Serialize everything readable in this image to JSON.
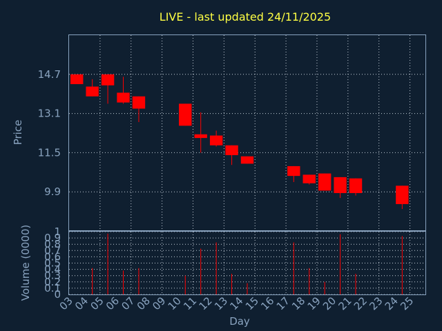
{
  "chart_data": [
    {
      "type": "candlestick",
      "title": "LIVE - last updated 24/11/2025",
      "ylabel": "Price",
      "ylim": [
        8.3,
        16.3
      ],
      "yticks": [
        9.9,
        11.5,
        13.1,
        14.7
      ],
      "grid": true,
      "up_color": "#ff0000",
      "days": [
        "03",
        "04",
        "05",
        "06",
        "07",
        "08",
        "09",
        "10",
        "11",
        "12",
        "13",
        "14",
        "15",
        "16",
        "17",
        "18",
        "19",
        "20",
        "21",
        "22",
        "23",
        "24",
        "25"
      ],
      "candles": [
        {
          "day": "03",
          "open": 14.7,
          "high": 14.7,
          "low": 14.3,
          "close": 14.3
        },
        {
          "day": "04",
          "open": 14.2,
          "high": 14.5,
          "low": 13.8,
          "close": 13.8
        },
        {
          "day": "05",
          "open": 14.7,
          "high": 14.7,
          "low": 13.5,
          "close": 14.25
        },
        {
          "day": "06",
          "open": 13.95,
          "high": 14.6,
          "low": 13.5,
          "close": 13.55
        },
        {
          "day": "07",
          "open": 13.8,
          "high": 13.8,
          "low": 12.75,
          "close": 13.3
        },
        {
          "day": "10",
          "open": 13.5,
          "high": 13.5,
          "low": 12.6,
          "close": 12.6
        },
        {
          "day": "11",
          "open": 12.25,
          "high": 13.15,
          "low": 11.5,
          "close": 12.1
        },
        {
          "day": "12",
          "open": 12.2,
          "high": 12.4,
          "low": 11.75,
          "close": 11.8
        },
        {
          "day": "13",
          "open": 11.8,
          "high": 11.8,
          "low": 11.0,
          "close": 11.4
        },
        {
          "day": "14",
          "open": 11.35,
          "high": 11.35,
          "low": 11.05,
          "close": 11.05
        },
        {
          "day": "17",
          "open": 10.95,
          "high": 10.95,
          "low": 10.3,
          "close": 10.55
        },
        {
          "day": "18",
          "open": 10.6,
          "high": 10.6,
          "low": 10.2,
          "close": 10.25
        },
        {
          "day": "19",
          "open": 10.65,
          "high": 10.65,
          "low": 9.95,
          "close": 9.95
        },
        {
          "day": "20",
          "open": 10.5,
          "high": 10.5,
          "low": 9.65,
          "close": 9.85
        },
        {
          "day": "21",
          "open": 10.45,
          "high": 10.45,
          "low": 9.75,
          "close": 9.85
        },
        {
          "day": "24",
          "open": 10.15,
          "high": 10.15,
          "low": 9.2,
          "close": 9.4
        }
      ]
    },
    {
      "type": "bar",
      "xlabel": "Day",
      "ylabel": "Volume (0000)",
      "ylim": [
        0,
        1
      ],
      "yticks": [
        "0",
        "0.1",
        "0.2",
        "0.3",
        "0.4",
        "0.5",
        "0.6",
        "0.7",
        "0.8",
        "0.9",
        "1"
      ],
      "bar_color": "#ff0000",
      "volumes": [
        {
          "day": "04",
          "value": 0.42
        },
        {
          "day": "05",
          "value": 0.97
        },
        {
          "day": "06",
          "value": 0.38
        },
        {
          "day": "07",
          "value": 0.42
        },
        {
          "day": "10",
          "value": 0.3
        },
        {
          "day": "11",
          "value": 0.73
        },
        {
          "day": "12",
          "value": 0.83
        },
        {
          "day": "13",
          "value": 0.33
        },
        {
          "day": "14",
          "value": 0.18
        },
        {
          "day": "17",
          "value": 0.83
        },
        {
          "day": "18",
          "value": 0.42
        },
        {
          "day": "19",
          "value": 0.2
        },
        {
          "day": "20",
          "value": 0.96
        },
        {
          "day": "21",
          "value": 0.33
        },
        {
          "day": "24",
          "value": 0.93
        }
      ]
    }
  ]
}
